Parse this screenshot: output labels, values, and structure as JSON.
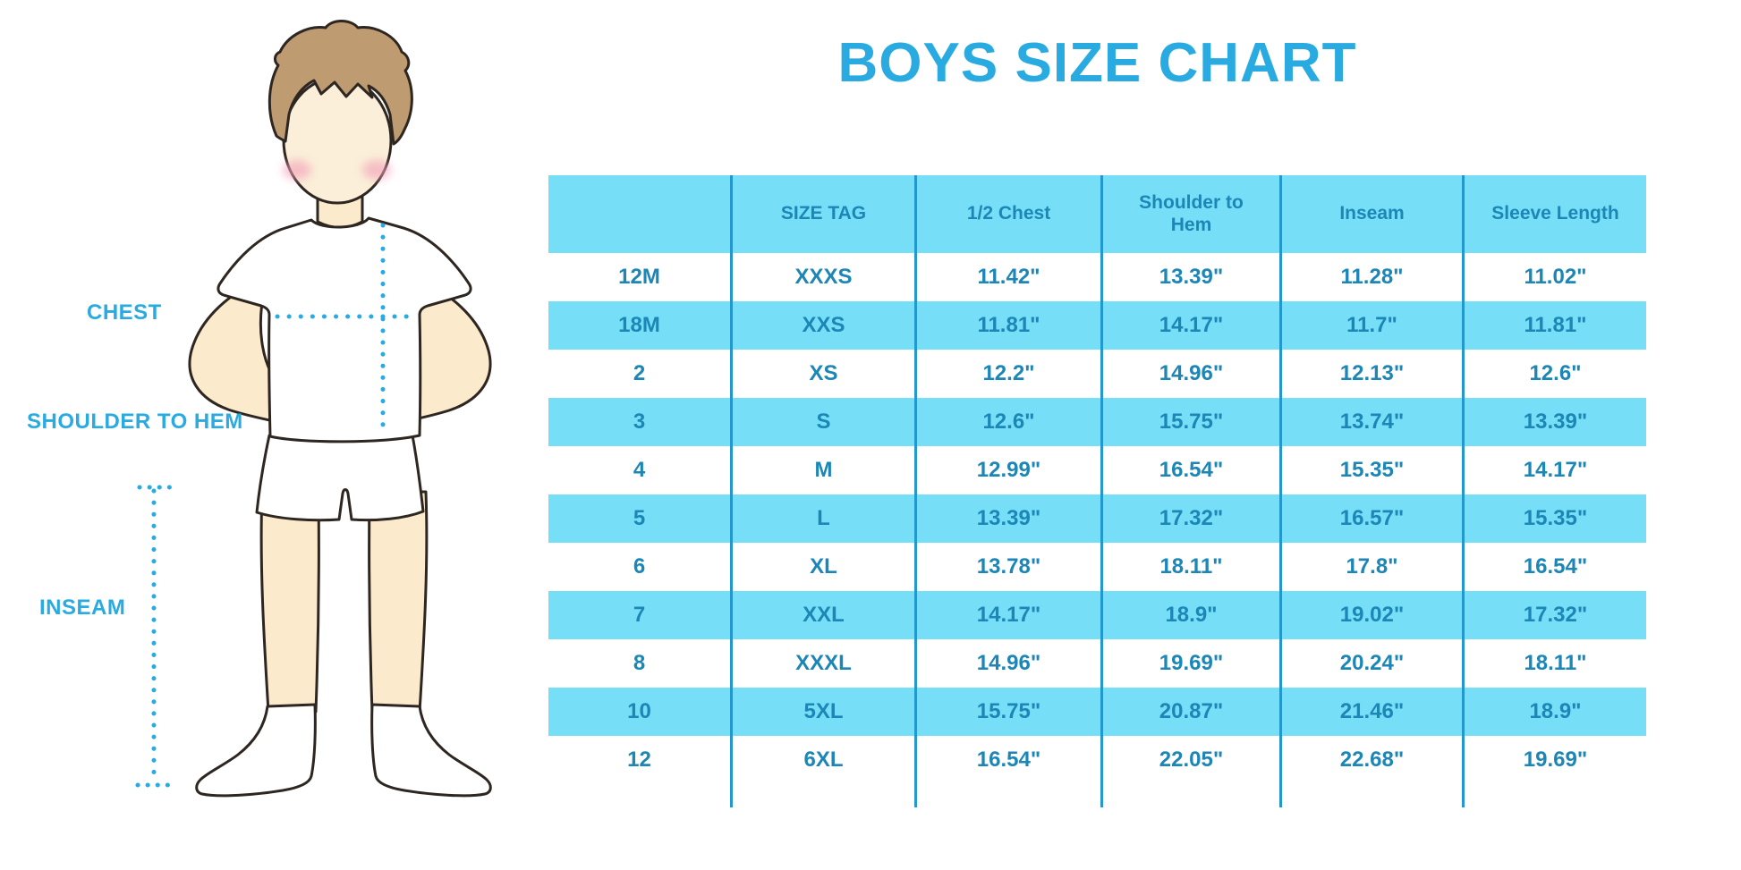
{
  "title": "BOYS SIZE CHART",
  "figure_labels": {
    "chest": "CHEST",
    "shoulder_to_hem": "SHOULDER TO HEM",
    "inseam": "INSEAM"
  },
  "chart_data": {
    "type": "table",
    "title": "BOYS SIZE CHART",
    "columns": [
      "",
      "SIZE TAG",
      "1/2 Chest",
      "Shoulder to Hem",
      "Inseam",
      "Sleeve Length"
    ],
    "rows": [
      [
        "12M",
        "XXXS",
        "11.42\"",
        "13.39\"",
        "11.28\"",
        "11.02\""
      ],
      [
        "18M",
        "XXS",
        "11.81\"",
        "14.17\"",
        "11.7\"",
        "11.81\""
      ],
      [
        "2",
        "XS",
        "12.2\"",
        "14.96\"",
        "12.13\"",
        "12.6\""
      ],
      [
        "3",
        "S",
        "12.6\"",
        "15.75\"",
        "13.74\"",
        "13.39\""
      ],
      [
        "4",
        "M",
        "12.99\"",
        "16.54\"",
        "15.35\"",
        "14.17\""
      ],
      [
        "5",
        "L",
        "13.39\"",
        "17.32\"",
        "16.57\"",
        "15.35\""
      ],
      [
        "6",
        "XL",
        "13.78\"",
        "18.11\"",
        "17.8\"",
        "16.54\""
      ],
      [
        "7",
        "XXL",
        "14.17\"",
        "18.9\"",
        "19.02\"",
        "17.32\""
      ],
      [
        "8",
        "XXXL",
        "14.96\"",
        "19.69\"",
        "20.24\"",
        "18.11\""
      ],
      [
        "10",
        "5XL",
        "15.75\"",
        "20.87\"",
        "21.46\"",
        "18.9\""
      ],
      [
        "12",
        "6XL",
        "16.54\"",
        "22.05\"",
        "22.68\"",
        "19.69\""
      ]
    ],
    "units": "inches",
    "row_alternating_highlight": [
      1,
      3,
      5,
      7,
      9
    ]
  },
  "colors": {
    "accent_blue": "#29ABE2",
    "table_row_highlight": "#76DFF7",
    "table_text": "#1C86B6",
    "table_divider": "#2398CE",
    "skin": "#FBEACB",
    "face": "#FBEFD9",
    "hair": "#BE9B70",
    "blush": "#F2A3BA",
    "outline": "#2E2620",
    "dotted_measure_line": "#29ABE2"
  }
}
